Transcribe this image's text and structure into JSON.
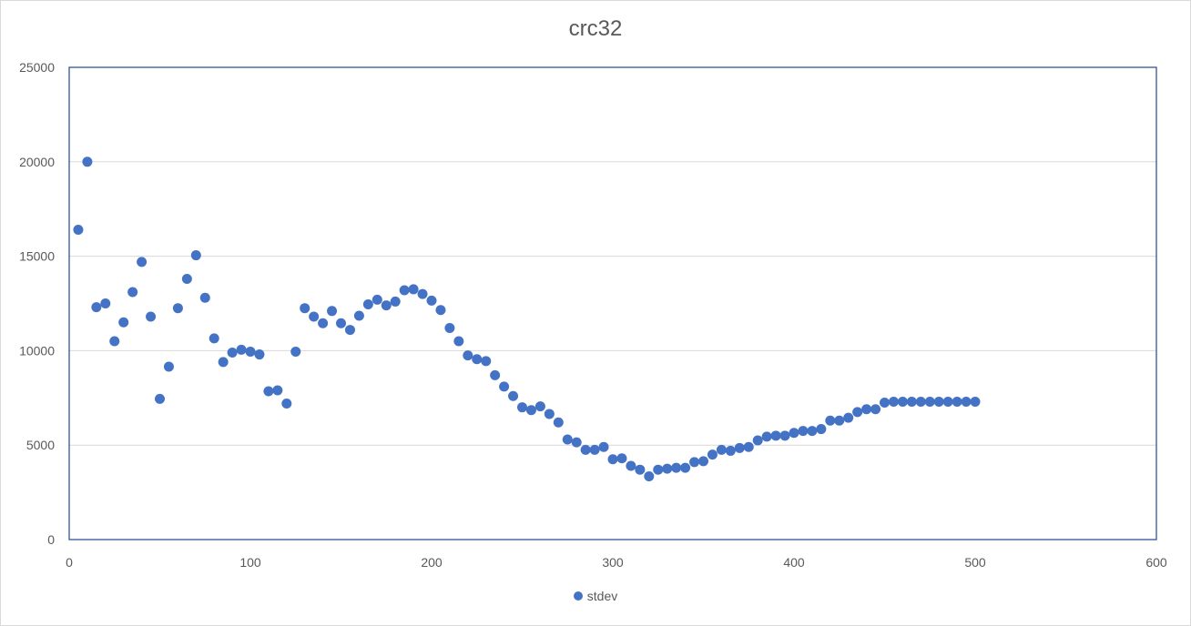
{
  "chart_data": {
    "type": "scatter",
    "title": "crc32",
    "xlabel": "",
    "ylabel": "",
    "xlim": [
      0,
      600
    ],
    "ylim": [
      0,
      25000
    ],
    "x_ticks": [
      0,
      100,
      200,
      300,
      400,
      500,
      600
    ],
    "y_ticks": [
      0,
      5000,
      10000,
      15000,
      20000,
      25000
    ],
    "grid": "horizontal",
    "legend_position": "bottom",
    "marker_color": "#4472c4",
    "series": [
      {
        "name": "stdev",
        "x": [
          5,
          10,
          15,
          20,
          25,
          30,
          35,
          40,
          45,
          50,
          55,
          60,
          65,
          70,
          75,
          80,
          85,
          90,
          95,
          100,
          105,
          110,
          115,
          120,
          125,
          130,
          135,
          140,
          145,
          150,
          155,
          160,
          165,
          170,
          175,
          180,
          185,
          190,
          195,
          200,
          205,
          210,
          215,
          220,
          225,
          230,
          235,
          240,
          245,
          250,
          255,
          260,
          265,
          270,
          275,
          280,
          285,
          290,
          295,
          300,
          305,
          310,
          315,
          320,
          325,
          330,
          335,
          340,
          345,
          350,
          355,
          360,
          365,
          370,
          375,
          380,
          385,
          390,
          395,
          400,
          405,
          410,
          415,
          420,
          425,
          430,
          435,
          440,
          445,
          450,
          455,
          460,
          465,
          470,
          475,
          480,
          485,
          490,
          495,
          500
        ],
        "y": [
          16400,
          20000,
          12300,
          12500,
          10500,
          11500,
          13100,
          14700,
          11800,
          7450,
          9150,
          12250,
          13800,
          15050,
          12800,
          10650,
          9400,
          9900,
          10050,
          9950,
          9800,
          7850,
          7900,
          7200,
          9950,
          12250,
          11800,
          11450,
          12100,
          11450,
          11100,
          11850,
          12450,
          12700,
          12400,
          12600,
          13200,
          13250,
          13000,
          12650,
          12150,
          11200,
          10500,
          9750,
          9550,
          9450,
          8700,
          8100,
          7600,
          7000,
          6850,
          7050,
          6650,
          6200,
          5300,
          5150,
          4750,
          4750,
          4900,
          4250,
          4300,
          3900,
          3700,
          3350,
          3700,
          3750,
          3800,
          3800,
          4100,
          4150,
          4500,
          4750,
          4700,
          4850,
          4900,
          5250,
          5450,
          5500,
          5500,
          5650,
          5750,
          5750,
          5850,
          6300,
          6300,
          6450,
          6750,
          6900,
          6900,
          7250,
          7300,
          7300,
          7300,
          7300,
          7300,
          7300,
          7300,
          7300,
          7300,
          7300
        ]
      }
    ]
  }
}
